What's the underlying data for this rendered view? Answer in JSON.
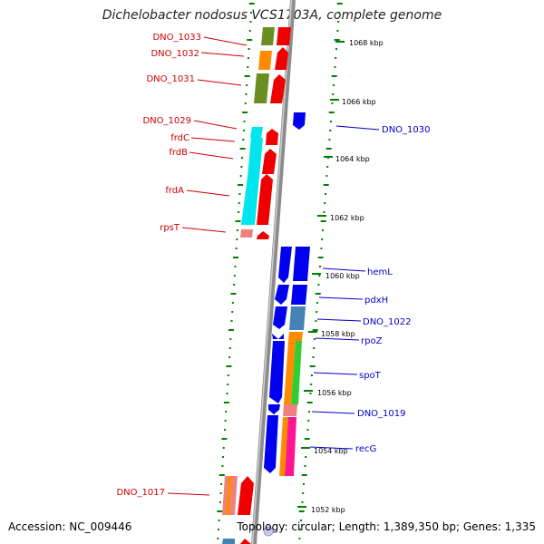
{
  "title": "Dichelobacter nodosus VCS1703A, complete genome",
  "footer": {
    "accession": "Accession: NC_009446",
    "stats": "Topology: circular; Length: 1,389,350 bp; Genes: 1,335"
  },
  "colors": {
    "backbone": "#8c8c8c",
    "tick_green": "#008000",
    "label_left": "#cc0000",
    "label_right": "#0000cc"
  },
  "scale_labels": [
    "1068 kbp",
    "1066 kbp",
    "1064 kbp",
    "1062 kbp",
    "1060 kbp",
    "1058 kbp",
    "1056 kbp",
    "1054 kbp",
    "1052 kbp"
  ],
  "left_genes": [
    "DNO_1033",
    "DNO_1032",
    "DNO_1031",
    "DNO_1029",
    "frdC",
    "frdB",
    "frdA",
    "rpsT",
    "DNO_1017"
  ],
  "right_genes": [
    "DNO_1030",
    "hemL",
    "pdxH",
    "DNO_1022",
    "rpoZ",
    "spoT",
    "DNO_1019",
    "recG"
  ]
}
